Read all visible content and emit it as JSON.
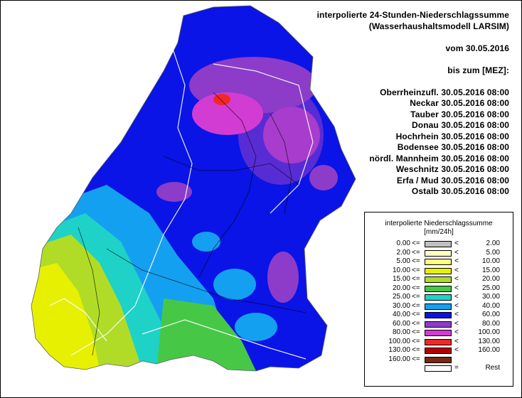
{
  "header": {
    "title_line1": "interpolierte 24-Stunden-Niederschlagssumme",
    "title_line2": "(Wasserhaushaltsmodell LARSIM)",
    "date_line": "vom 30.05.2016",
    "until_line": "bis zum [MEZ]:",
    "basins": [
      {
        "name": "Oberrheinzufl.",
        "time": "30.05.2016 08:00"
      },
      {
        "name": "Neckar",
        "time": "30.05.2016 08:00"
      },
      {
        "name": "Tauber",
        "time": "30.05.2016 08:00"
      },
      {
        "name": "Donau",
        "time": "30.05.2016 08:00"
      },
      {
        "name": "Hochrhein",
        "time": "30.05.2016 08:00"
      },
      {
        "name": "Bodensee",
        "time": "30.05.2016 08:00"
      },
      {
        "name": "nördl. Mannheim",
        "time": "30.05.2016 08:00"
      },
      {
        "name": "Weschnitz",
        "time": "30.05.2016 08:00"
      },
      {
        "name": "Erfa / Mud",
        "time": "30.05.2016 08:00"
      },
      {
        "name": "Ostalb",
        "time": "30.05.2016 08:00"
      }
    ]
  },
  "legend": {
    "title_line1": "interpolierte Niederschlagssumme",
    "title_line2": "[mm/24h]",
    "rows": [
      {
        "low": "0.00",
        "op1": "<=",
        "color": "#c0c0c0",
        "op2": "<",
        "high": "2.00"
      },
      {
        "low": "2.00",
        "op1": "<=",
        "color": "#ffffc0",
        "op2": "<",
        "high": "5.00"
      },
      {
        "low": "5.00",
        "op1": "<=",
        "color": "#ffff80",
        "op2": "<",
        "high": "10.00"
      },
      {
        "low": "10.00",
        "op1": "<=",
        "color": "#e6f000",
        "op2": "<",
        "high": "15.00"
      },
      {
        "low": "15.00",
        "op1": "<=",
        "color": "#b0dc28",
        "op2": "<",
        "high": "20.00"
      },
      {
        "low": "20.00",
        "op1": "<=",
        "color": "#46c846",
        "op2": "<",
        "high": "25.00"
      },
      {
        "low": "25.00",
        "op1": "<=",
        "color": "#1ed2c8",
        "op2": "<",
        "high": "30.00"
      },
      {
        "low": "30.00",
        "op1": "<=",
        "color": "#14a0f0",
        "op2": "<",
        "high": "40.00"
      },
      {
        "low": "40.00",
        "op1": "<=",
        "color": "#0a14e6",
        "op2": "<",
        "high": "60.00"
      },
      {
        "low": "60.00",
        "op1": "<=",
        "color": "#8c3cc8",
        "op2": "<",
        "high": "80.00"
      },
      {
        "low": "80.00",
        "op1": "<=",
        "color": "#d23cd2",
        "op2": "<",
        "high": "100.00"
      },
      {
        "low": "100.00",
        "op1": "<=",
        "color": "#f02828",
        "op2": "<",
        "high": "130.00"
      },
      {
        "low": "130.00",
        "op1": "<=",
        "color": "#b40000",
        "op2": "<",
        "high": "160.00"
      },
      {
        "low": "160.00",
        "op1": "<=",
        "color": "#782814",
        "op2": "",
        "high": ""
      },
      {
        "low": "",
        "op1": "",
        "color": "#ffffff",
        "op2": "=",
        "high": "Rest"
      }
    ]
  }
}
